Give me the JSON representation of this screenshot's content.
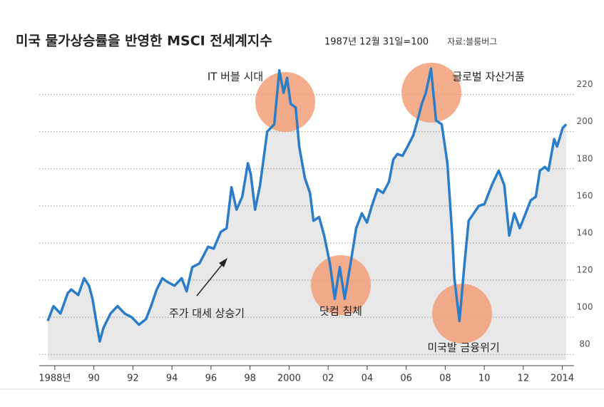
{
  "chart_data": {
    "type": "line",
    "title": "미국 물가상승률을 반영한 MSCI 전세계지수",
    "subtitle": "1987년 12월 31일=100",
    "source": "자료:블룸버그",
    "annotations": [
      "IT 버블 시대",
      "글로벌 자산거품",
      "닷컴 침체",
      "미국발 금융위기",
      "주가 대세 상승기"
    ],
    "color": "#2a7dc6",
    "x": [
      1987.64,
      1987.93,
      1988.29,
      1988.66,
      1988.84,
      1989.2,
      1989.5,
      1989.75,
      1989.93,
      1990.12,
      1990.3,
      1990.48,
      1990.85,
      1991.21,
      1991.58,
      1991.94,
      1992.31,
      1992.67,
      1992.93,
      1993.22,
      1993.51,
      1993.77,
      1994.13,
      1994.5,
      1994.75,
      1995.04,
      1995.41,
      1995.85,
      1996.14,
      1996.5,
      1996.8,
      1997.05,
      1997.31,
      1997.6,
      1997.89,
      1998.04,
      1998.26,
      1998.51,
      1998.88,
      1999.24,
      1999.5,
      1999.72,
      1999.9,
      2000.08,
      2000.34,
      2000.52,
      2000.81,
      2001.07,
      2001.25,
      2001.54,
      2001.8,
      2002.09,
      2002.34,
      2002.6,
      2002.85,
      2003.15,
      2003.44,
      2003.73,
      2003.99,
      2004.24,
      2004.53,
      2004.82,
      2005.12,
      2005.34,
      2005.55,
      2005.81,
      2006.07,
      2006.36,
      2006.58,
      2006.8,
      2007.01,
      2007.27,
      2007.53,
      2007.82,
      2008.11,
      2008.36,
      2008.47,
      2008.73,
      2008.99,
      2009.2,
      2009.46,
      2009.72,
      2010.01,
      2010.38,
      2010.74,
      2011.03,
      2011.28,
      2011.54,
      2011.82,
      2012.12,
      2012.38,
      2012.64,
      2012.85,
      2013.11,
      2013.29,
      2013.58,
      2013.73,
      2014.02,
      2014.2
    ],
    "values": [
      98,
      106,
      102,
      113,
      115,
      112,
      121,
      117,
      110,
      98,
      87,
      94,
      102,
      106,
      102,
      100,
      96,
      99,
      106,
      115,
      121,
      119,
      117,
      121,
      114,
      127,
      129,
      138,
      137,
      146,
      148,
      170,
      158,
      165,
      183,
      177,
      158,
      171,
      200,
      204,
      233,
      221,
      229,
      215,
      213,
      192,
      175,
      167,
      152,
      154,
      144,
      129,
      110,
      127,
      110,
      129,
      148,
      156,
      151,
      160,
      169,
      167,
      173,
      185,
      188,
      187,
      192,
      198,
      206,
      215,
      221,
      234,
      206,
      204,
      183,
      144,
      121,
      98,
      129,
      152,
      156,
      160,
      161,
      171,
      179,
      171,
      144,
      156,
      148,
      156,
      163,
      165,
      179,
      181,
      179,
      196,
      192,
      202,
      204
    ],
    "xlim": [
      1987.2,
      2014.6
    ],
    "ylim": [
      77,
      236
    ],
    "xticks": [
      {
        "value": 1988,
        "label": "1988년"
      },
      {
        "value": 1990,
        "label": "90"
      },
      {
        "value": 1992,
        "label": "92"
      },
      {
        "value": 1994,
        "label": "94"
      },
      {
        "value": 1996,
        "label": "96"
      },
      {
        "value": 1998,
        "label": "98"
      },
      2000,
      {
        "value": 2002,
        "label": "02"
      },
      {
        "value": 2004,
        "label": "04"
      },
      {
        "value": 2006,
        "label": "06"
      },
      {
        "value": 2008,
        "label": "08"
      },
      {
        "value": 2010,
        "label": "10"
      },
      {
        "value": 2012,
        "label": "12"
      },
      2014
    ],
    "yticks": [
      80,
      100,
      120,
      140,
      160,
      180,
      200,
      220
    ],
    "grid": true
  }
}
